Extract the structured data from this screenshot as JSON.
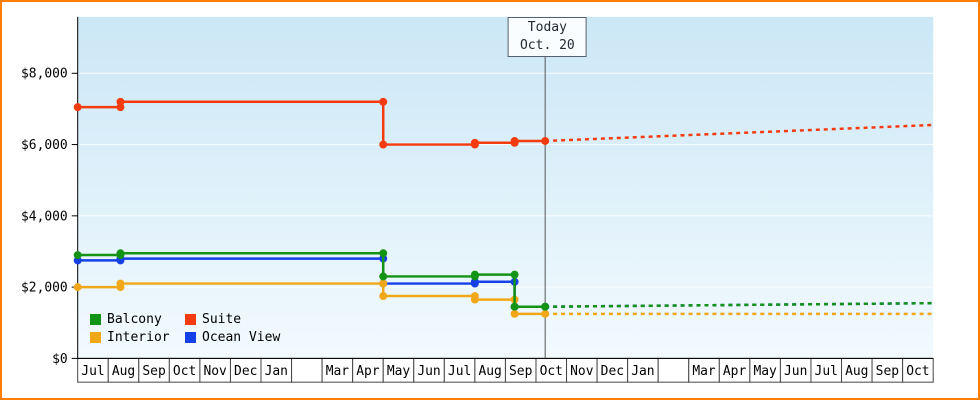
{
  "frame": {
    "border_color": "#ff7d00",
    "background": "#ffffff"
  },
  "today_marker": {
    "line1": "Today",
    "line2": "Oct. 20",
    "x_index": 15.3
  },
  "chart_data": {
    "type": "line",
    "subtype": "step",
    "x_categories": [
      "Jul",
      "Aug",
      "Sep",
      "Oct",
      "Nov",
      "Dec",
      "Jan",
      "",
      "Mar",
      "Apr",
      "May",
      "Jun",
      "Jul",
      "Aug",
      "Sep",
      "Oct",
      "Nov",
      "Dec",
      "Jan",
      "",
      "Mar",
      "Apr",
      "May",
      "Jun",
      "Jul",
      "Aug",
      "Sep",
      "Oct"
    ],
    "x_index_range": [
      0,
      28
    ],
    "ylim": [
      0,
      9500
    ],
    "y_ticks": {
      "values": [
        0,
        2000,
        4000,
        6000,
        8000
      ],
      "labels": [
        "$0",
        "$2,000",
        "$4,000",
        "$6,000",
        "$8,000"
      ]
    },
    "grid": true,
    "colors": {
      "plot_bg_top": "#cbe7f6",
      "plot_bg_bottom": "#f2fafe",
      "grid_line": "#ffffff",
      "axis": "#000000",
      "today_line": "#555555",
      "month_cell_border": "#444444"
    },
    "series": [
      {
        "name": "Ocean View",
        "color": "#1540e8",
        "solid_points": [
          [
            0,
            2750
          ],
          [
            1.4,
            2800
          ],
          [
            10,
            2100
          ],
          [
            13,
            2150
          ],
          [
            14.3,
            1450
          ],
          [
            15.3,
            1450
          ]
        ],
        "dashed_points": [
          [
            15.3,
            1450
          ],
          [
            28,
            1550
          ]
        ]
      },
      {
        "name": "Interior",
        "color": "#f0a818",
        "solid_points": [
          [
            0,
            2000
          ],
          [
            1.4,
            2100
          ],
          [
            10,
            1750
          ],
          [
            13,
            1650
          ],
          [
            14.3,
            1250
          ],
          [
            15.3,
            1250
          ]
        ],
        "dashed_points": [
          [
            15.3,
            1250
          ],
          [
            28,
            1250
          ]
        ]
      },
      {
        "name": "Balcony",
        "color": "#149414",
        "solid_points": [
          [
            0,
            2900
          ],
          [
            1.4,
            2950
          ],
          [
            10,
            2300
          ],
          [
            13,
            2350
          ],
          [
            14.3,
            1450
          ],
          [
            15.3,
            1450
          ]
        ],
        "dashed_points": [
          [
            15.3,
            1450
          ],
          [
            28,
            1550
          ]
        ]
      },
      {
        "name": "Suite",
        "color": "#f43b10",
        "solid_points": [
          [
            0,
            7050
          ],
          [
            1.4,
            7200
          ],
          [
            10,
            6000
          ],
          [
            13,
            6050
          ],
          [
            14.3,
            6100
          ],
          [
            15.3,
            6100
          ]
        ],
        "dashed_points": [
          [
            15.3,
            6100
          ],
          [
            28,
            6550
          ]
        ]
      }
    ],
    "legend": {
      "position": "bottom-left",
      "items": [
        {
          "label": "Balcony"
        },
        {
          "label": "Suite"
        },
        {
          "label": "Interior"
        },
        {
          "label": "Ocean View"
        }
      ]
    }
  }
}
